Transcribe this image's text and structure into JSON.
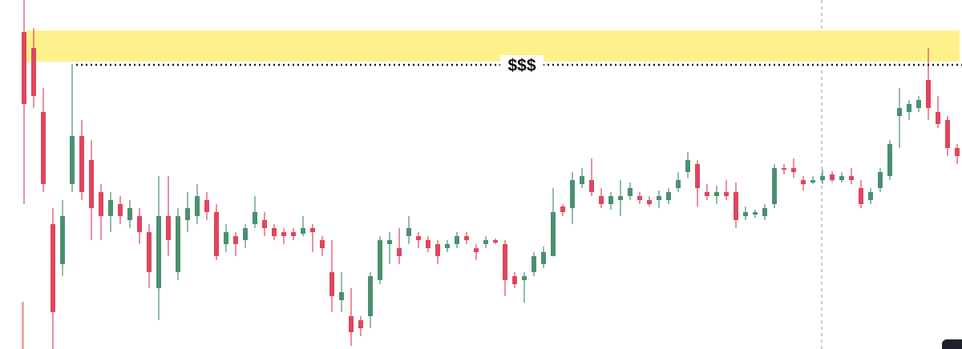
{
  "chart_data": {
    "type": "candlestick",
    "ylim": [
      0,
      436
    ],
    "up_color": "#4b9070",
    "down_color": "#e0455d",
    "zone": {
      "low": 359,
      "high": 398,
      "color": "#fdf18c"
    },
    "level": {
      "value": 355,
      "label": "$$$"
    },
    "open": [
      396,
      376,
      296,
      156,
      106,
      206,
      266,
      236,
      196,
      166,
      181,
      161,
      166,
      146,
      76,
      166,
      96,
      161,
      166,
      186,
      171,
      131,
      141,
      136,
      156,
      161,
      151,
      146,
      146,
      144,
      151,
      136,
      96,
      61,
      41,
      36,
      41,
      86,
      131,
      126,
      141,
      141,
      136,
      131,
      126,
      131,
      141,
      126,
      131,
      136,
      131,
      91,
      86,
      96,
      106,
      116,
      178,
      176,
      206,
      211,
      191,
      181,
      186,
      191,
      191,
      186,
      186,
      186,
      201,
      221,
      231,
      196,
      191,
      196,
      196,
      166,
      168,
      166,
      181,
      226,
      226,
      211,
      208,
      211,
      218,
      211,
      216,
      201,
      186,
      201,
      216,
      291,
      296,
      301,
      336,
      296,
      286,
      251
    ],
    "high": [
      436,
      401,
      326,
      176,
      186,
      356,
      286,
      261,
      206,
      196,
      191,
      186,
      176,
      156,
      216,
      216,
      176,
      196,
      206,
      196,
      181,
      156,
      146,
      156,
      191,
      171,
      156,
      151,
      151,
      166,
      156,
      141,
      136,
      96,
      76,
      41,
      96,
      141,
      146,
      151,
      166,
      146,
      141,
      136,
      136,
      146,
      146,
      131,
      141,
      138,
      136,
      96,
      96,
      121,
      128,
      201,
      181,
      221,
      226,
      238,
      201,
      196,
      211,
      208,
      196,
      191,
      198,
      201,
      221,
      246,
      236,
      206,
      204,
      211,
      208,
      178,
      174,
      181,
      231,
      231,
      238,
      216,
      216,
      224,
      222,
      221,
      226,
      211,
      201,
      226,
      261,
      326,
      311,
      316,
      376,
      316,
      291,
      256
    ],
    "low": [
      181,
      301,
      196,
      0,
      91,
      196,
      186,
      136,
      136,
      146,
      156,
      151,
      131,
      76,
      36,
      116,
      86,
      146,
      156,
      161,
      111,
      121,
      116,
      126,
      151,
      141,
      136,
      131,
      136,
      141,
      121,
      116,
      46,
      46,
      4,
      16,
      26,
      81,
      106,
      106,
      131,
      126,
      121,
      106,
      121,
      126,
      131,
      111,
      126,
      131,
      66,
      76,
      58,
      91,
      101,
      116,
      166,
      156,
      201,
      191,
      176,
      174,
      166,
      186,
      181,
      178,
      176,
      181,
      196,
      214,
      178,
      186,
      181,
      186,
      151,
      161,
      164,
      161,
      176,
      218,
      214,
      198,
      206,
      206,
      208,
      208,
      206,
      176,
      181,
      196,
      211,
      251,
      286,
      296,
      286,
      276,
      241,
      231
    ],
    "close": [
      306,
      316,
      206,
      46,
      166,
      266,
      196,
      176,
      166,
      186,
      166,
      176,
      146,
      96,
      166,
      136,
      166,
      176,
      191,
      171,
      116,
      146,
      131,
      151,
      171,
      151,
      141,
      141,
      141,
      151,
      146,
      126,
      66,
      71,
      21,
      26,
      91,
      136,
      136,
      116,
      151,
      136,
      126,
      116,
      131,
      141,
      136,
      121,
      136,
      133,
      86,
      81,
      91,
      116,
      121,
      171,
      171,
      211,
      216,
      196,
      181,
      191,
      191,
      201,
      186,
      181,
      191,
      196,
      211,
      236,
      201,
      191,
      196,
      191,
      161,
      171,
      171,
      176,
      226,
      224,
      221,
      206,
      211,
      216,
      211,
      216,
      211,
      181,
      196,
      221,
      256,
      301,
      306,
      311,
      301,
      281,
      251,
      241
    ]
  }
}
